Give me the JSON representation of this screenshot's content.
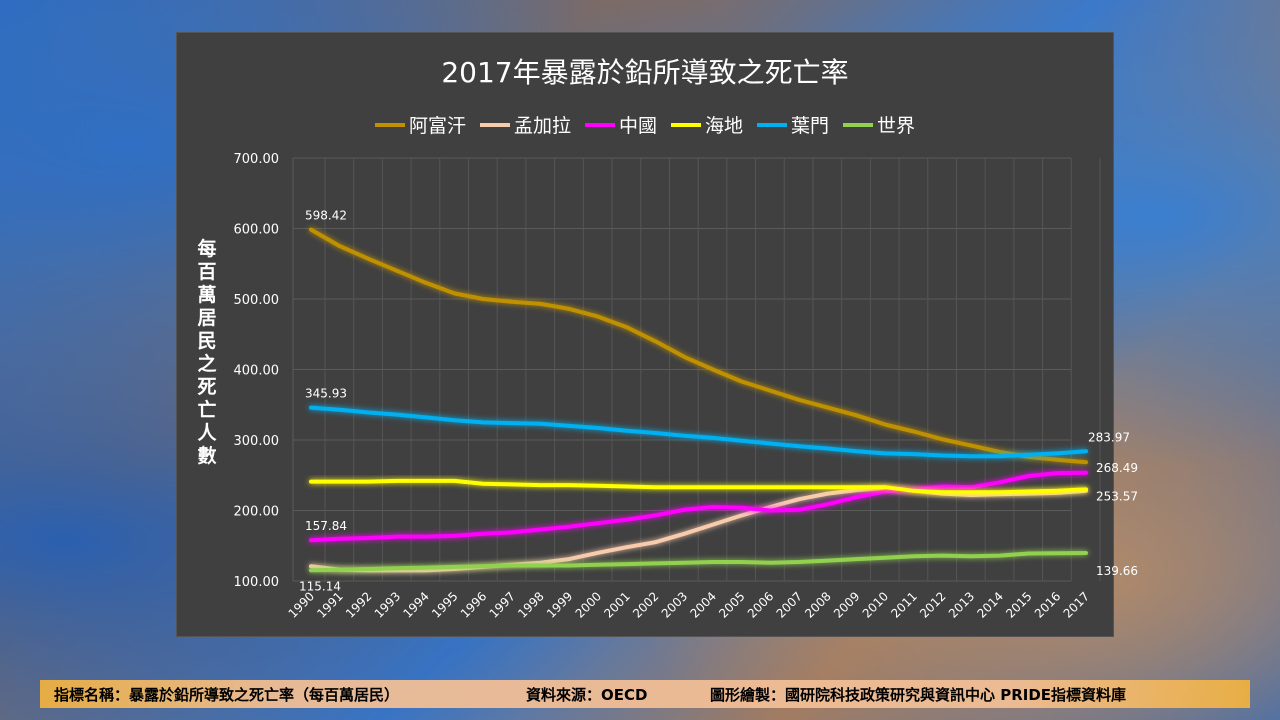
{
  "chart_data": {
    "type": "line",
    "title": "2017年暴露於鉛所導致之死亡率",
    "xlabel": "",
    "ylabel": "每百萬居民之死亡人數",
    "ylim": [
      100,
      700
    ],
    "yticks": [
      "100.00",
      "200.00",
      "300.00",
      "400.00",
      "500.00",
      "600.00",
      "700.00"
    ],
    "grid": true,
    "legend": "top",
    "x": [
      "1990",
      "1991",
      "1992",
      "1993",
      "1994",
      "1995",
      "1996",
      "1997",
      "1998",
      "1999",
      "2000",
      "2001",
      "2002",
      "2003",
      "2004",
      "2005",
      "2006",
      "2007",
      "2008",
      "2009",
      "2010",
      "2011",
      "2012",
      "2013",
      "2014",
      "2015",
      "2016",
      "2017"
    ],
    "series": [
      {
        "name": "阿富汗",
        "color": "#bf9000",
        "values": [
          598.42,
          575,
          557,
          540,
          523,
          508,
          500,
          496,
          493,
          486,
          475,
          460,
          440,
          418,
          400,
          383,
          370,
          357,
          346,
          335,
          322,
          312,
          301,
          292,
          283,
          276,
          272,
          268.49
        ],
        "labels": {
          "0": "598.42",
          "27": "268.49"
        }
      },
      {
        "name": "孟加拉",
        "color": "#f8cbad",
        "values": [
          121,
          116,
          115,
          115,
          115,
          117,
          120,
          123,
          126,
          131,
          140,
          148,
          155,
          167,
          180,
          193,
          205,
          216,
          224,
          229,
          232,
          228,
          224,
          222,
          223,
          224,
          225,
          228
        ],
        "labels": {}
      },
      {
        "name": "中國",
        "color": "#ff00ff",
        "values": [
          157.84,
          160,
          161,
          163,
          163,
          164,
          167,
          169,
          173,
          177,
          182,
          187,
          193,
          201,
          205,
          204,
          200,
          201,
          209,
          219,
          227,
          230,
          234,
          233,
          240,
          249,
          253,
          253.57
        ],
        "labels": {
          "0": "157.84",
          "27": "253.57"
        }
      },
      {
        "name": "海地",
        "color": "#ffff00",
        "values": [
          241,
          241,
          241,
          242,
          242,
          242,
          238,
          237,
          236,
          236,
          235,
          234,
          233,
          233,
          233,
          233,
          233,
          233,
          233,
          233,
          233,
          228,
          226,
          226,
          226,
          227,
          228,
          230
        ],
        "labels": {}
      },
      {
        "name": "葉門",
        "color": "#00b0f0",
        "values": [
          345.93,
          343,
          339,
          336,
          332,
          328,
          325,
          324,
          323,
          320,
          317,
          313,
          310,
          306,
          303,
          299,
          295,
          291,
          288,
          284,
          281,
          280,
          278,
          277,
          277,
          279,
          281,
          283.97
        ],
        "labels": {
          "0": "345.93",
          "27": "283.97"
        }
      },
      {
        "name": "世界",
        "color": "#92d050",
        "values": [
          115.14,
          116,
          117,
          118,
          119,
          120,
          121,
          122,
          122,
          122,
          123,
          124,
          125,
          126,
          127,
          127,
          126,
          127,
          129,
          131,
          133,
          135,
          136,
          135,
          136,
          139,
          139.5,
          139.66
        ],
        "labels": {
          "0": "115.14",
          "27": "139.66"
        }
      }
    ]
  },
  "footer": {
    "indicator": "指標名稱：暴露於鉛所導致之死亡率（每百萬居民）",
    "source": "資料來源：OECD",
    "credit": "圖形繪製：國研院科技政策研究與資訊中心 PRIDE指標資料庫"
  }
}
